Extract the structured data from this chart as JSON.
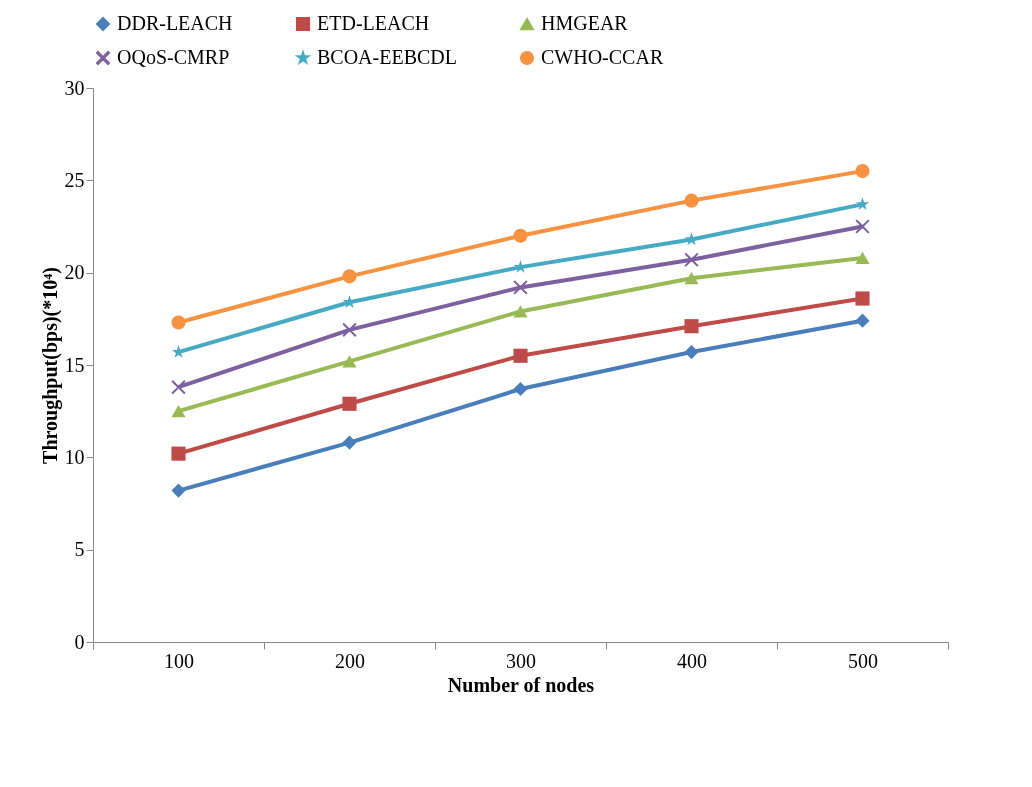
{
  "chart_data": {
    "type": "line",
    "xlabel": "Number of nodes",
    "ylabel": "Throughput(bps)(*10⁴)",
    "categories": [
      "100",
      "200",
      "300",
      "400",
      "500"
    ],
    "ylim": [
      0,
      30
    ],
    "yticks": [
      0,
      5,
      10,
      15,
      20,
      25,
      30
    ],
    "legend": "top",
    "grid": false,
    "series": [
      {
        "name": "DDR-LEACH",
        "color": "#4a7ebb",
        "marker": "diamond",
        "values": [
          8.2,
          10.8,
          13.7,
          15.7,
          17.4
        ]
      },
      {
        "name": "ETD-LEACH",
        "color": "#be4b48",
        "marker": "square",
        "values": [
          10.2,
          12.9,
          15.5,
          17.1,
          18.6
        ]
      },
      {
        "name": "HMGEAR",
        "color": "#98b954",
        "marker": "triangle",
        "values": [
          12.5,
          15.2,
          17.9,
          19.7,
          20.8
        ]
      },
      {
        "name": "OQoS-CMRP",
        "color": "#7d60a0",
        "marker": "cross",
        "values": [
          13.8,
          16.9,
          19.2,
          20.7,
          22.5
        ]
      },
      {
        "name": "BCOA-EEBCDL",
        "color": "#46aac5",
        "marker": "star",
        "values": [
          15.7,
          18.4,
          20.3,
          21.8,
          23.7
        ]
      },
      {
        "name": "CWHO-CCAR",
        "color": "#f69240",
        "marker": "circle",
        "values": [
          17.3,
          19.8,
          22.0,
          23.9,
          25.5
        ]
      }
    ]
  }
}
